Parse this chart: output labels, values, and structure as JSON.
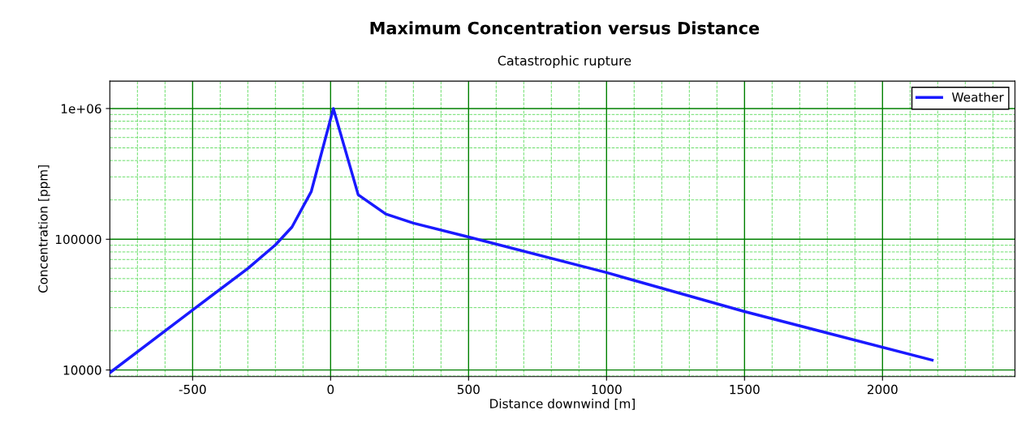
{
  "chart_data": {
    "type": "line",
    "title": "Maximum Concentration versus Distance",
    "subtitle": "Catastrophic rupture",
    "xlabel": "Distance downwind [m]",
    "ylabel": "Concentration [ppm]",
    "series": [
      {
        "name": "Weather",
        "color": "#1a1aff",
        "x": [
          -798,
          -500,
          -300,
          -200,
          -140,
          -70,
          10,
          100,
          200,
          300,
          500,
          1000,
          1500,
          2180
        ],
        "values": [
          9600,
          28800,
          59700,
          90600,
          124000,
          232000,
          1000000,
          219000,
          156000,
          133000,
          104000,
          55600,
          28000,
          11900
        ]
      }
    ],
    "xlim": [
      -800,
      2480
    ],
    "xticks": [
      {
        "value": -700,
        "label": null
      },
      {
        "value": -600,
        "label": null
      },
      -500,
      {
        "value": -400,
        "label": null
      },
      {
        "value": -300,
        "label": null
      },
      {
        "value": -200,
        "label": null
      },
      {
        "value": -100,
        "label": null
      },
      0,
      {
        "value": 100,
        "label": null
      },
      {
        "value": 200,
        "label": null
      },
      {
        "value": 300,
        "label": null
      },
      {
        "value": 400,
        "label": null
      },
      500,
      {
        "value": 600,
        "label": null
      },
      {
        "value": 700,
        "label": null
      },
      {
        "value": 800,
        "label": null
      },
      {
        "value": 900,
        "label": null
      },
      1000,
      {
        "value": 1100,
        "label": null
      },
      {
        "value": 1200,
        "label": null
      },
      {
        "value": 1300,
        "label": null
      },
      {
        "value": 1400,
        "label": null
      },
      1500,
      {
        "value": 1600,
        "label": null
      },
      {
        "value": 1700,
        "label": null
      },
      {
        "value": 1800,
        "label": null
      },
      {
        "value": 1900,
        "label": null
      },
      2000,
      {
        "value": 2100,
        "label": null
      },
      {
        "value": 2200,
        "label": null
      },
      {
        "value": 2300,
        "label": null
      },
      {
        "value": 2400,
        "label": null
      }
    ],
    "ylim": [
      8900,
      1620000
    ],
    "yticks": [
      {
        "value": 9000,
        "label": null
      },
      10000,
      {
        "value": 20000,
        "label": null
      },
      {
        "value": 30000,
        "label": null
      },
      {
        "value": 40000,
        "label": null
      },
      {
        "value": 50000,
        "label": null
      },
      {
        "value": 60000,
        "label": null
      },
      {
        "value": 70000,
        "label": null
      },
      {
        "value": 80000,
        "label": null
      },
      {
        "value": 90000,
        "label": null
      },
      100000,
      {
        "value": 200000,
        "label": null
      },
      {
        "value": 300000,
        "label": null
      },
      {
        "value": 400000,
        "label": null
      },
      {
        "value": 500000,
        "label": null
      },
      {
        "value": 600000,
        "label": null
      },
      {
        "value": 700000,
        "label": null
      },
      {
        "value": 800000,
        "label": null
      },
      {
        "value": 900000,
        "label": null
      },
      {
        "value": 1000000,
        "label": "1e+06"
      }
    ],
    "log": "y",
    "grid": true,
    "legend": "top right",
    "marker": "none",
    "line_style": "solid"
  }
}
